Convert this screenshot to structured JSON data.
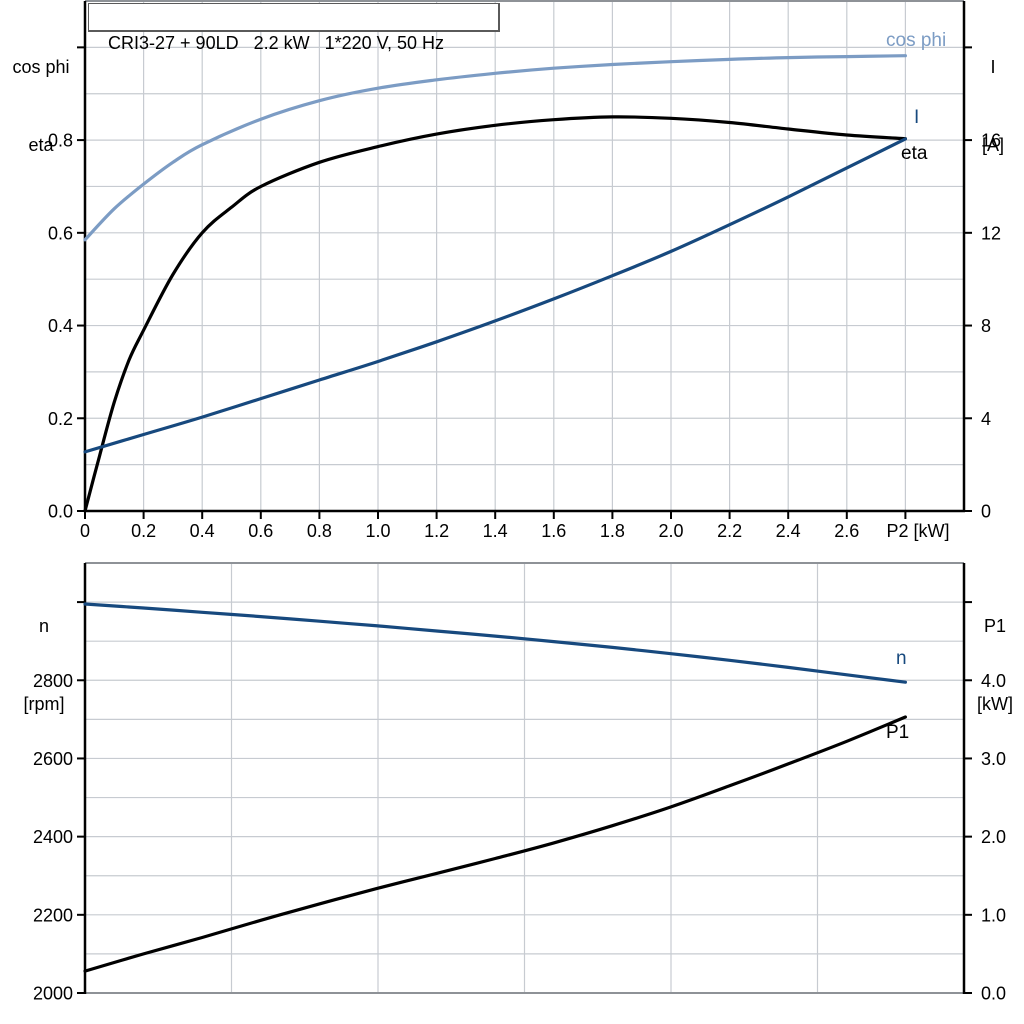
{
  "title": "CRI3-27 + 90LD   2.2 kW   1*220 V, 50 Hz",
  "colors": {
    "background": "#FFFFFF",
    "grid": "#C7CBD1",
    "axis": "#000000",
    "frame": "#8E9297",
    "title_border": "#5A5A5A",
    "cos_phi_blue": "#7C9CC4",
    "dark_blue": "#17497E",
    "black": "#000000"
  },
  "chart_data": [
    {
      "type": "line",
      "id": "top-chart",
      "title": "CRI3-27 + 90LD   2.2 kW   1*220 V, 50 Hz",
      "xlabel": "P2 [kW]",
      "x_range": [
        0,
        3.0
      ],
      "x_grid": [
        0.2,
        0.4,
        0.6,
        0.8,
        1.0,
        1.2,
        1.4,
        1.6,
        1.8,
        2.0,
        2.2,
        2.4,
        2.6,
        2.8
      ],
      "x_ticks": {
        "values": [
          0,
          0.2,
          0.4,
          0.6,
          0.8,
          1.0,
          1.2,
          1.4,
          1.6,
          1.8,
          2.0,
          2.2,
          2.4,
          2.6,
          2.8
        ],
        "labels": [
          "0",
          "0.2",
          "0.4",
          "0.6",
          "0.8",
          "1.0",
          "1.2",
          "1.4",
          "1.6",
          "1.8",
          "2.0",
          "2.2",
          "2.4",
          "2.6",
          ""
        ]
      },
      "left_axis": {
        "title_lines": [
          "cos phi",
          "eta"
        ],
        "range": [
          0,
          1.1
        ],
        "grid": [
          0.1,
          0.2,
          0.3,
          0.4,
          0.5,
          0.6,
          0.7,
          0.8,
          0.9,
          1.0,
          1.1
        ],
        "ticks": {
          "values": [
            0,
            0.2,
            0.4,
            0.6,
            0.8,
            1.0
          ],
          "labels": [
            "0.0",
            "0.2",
            "0.4",
            "0.6",
            "0.8",
            ""
          ]
        }
      },
      "right_axis": {
        "title_lines": [
          "I",
          "[A]"
        ],
        "range": [
          0,
          22
        ],
        "ticks": {
          "values": [
            0,
            4,
            8,
            12,
            16,
            20
          ],
          "labels": [
            "0",
            "4",
            "8",
            "12",
            "16",
            ""
          ]
        }
      },
      "series": [
        {
          "name": "cos phi",
          "axis": "left",
          "color": "#7C9CC4",
          "x": [
            0,
            0.1,
            0.2,
            0.3,
            0.4,
            0.6,
            0.8,
            1.0,
            1.2,
            1.4,
            1.6,
            1.8,
            2.0,
            2.2,
            2.4,
            2.6,
            2.8
          ],
          "y": [
            0.585,
            0.652,
            0.705,
            0.752,
            0.79,
            0.845,
            0.885,
            0.912,
            0.93,
            0.944,
            0.955,
            0.963,
            0.969,
            0.974,
            0.978,
            0.98,
            0.982
          ]
        },
        {
          "name": "eta",
          "axis": "left",
          "color": "#000000",
          "x": [
            0,
            0.05,
            0.1,
            0.15,
            0.2,
            0.3,
            0.4,
            0.5,
            0.6,
            0.8,
            1.0,
            1.2,
            1.4,
            1.6,
            1.8,
            2.0,
            2.2,
            2.4,
            2.6,
            2.8
          ],
          "y": [
            0,
            0.12,
            0.235,
            0.325,
            0.39,
            0.51,
            0.6,
            0.655,
            0.7,
            0.752,
            0.786,
            0.813,
            0.832,
            0.844,
            0.85,
            0.847,
            0.838,
            0.824,
            0.811,
            0.803
          ]
        },
        {
          "name": "I",
          "axis": "right",
          "color": "#17497E",
          "x": [
            0,
            0.2,
            0.4,
            0.6,
            0.8,
            1.0,
            1.2,
            1.4,
            1.6,
            1.8,
            2.0,
            2.2,
            2.4,
            2.6,
            2.8
          ],
          "y": [
            2.55,
            3.3,
            4.05,
            4.85,
            5.65,
            6.45,
            7.3,
            8.2,
            9.15,
            10.15,
            11.2,
            12.35,
            13.55,
            14.8,
            16.05
          ]
        }
      ]
    },
    {
      "type": "line",
      "id": "bottom-chart",
      "xlabel": "",
      "x_range": [
        0,
        3.0
      ],
      "x_grid": [
        0.5,
        1.0,
        1.5,
        2.0,
        2.5
      ],
      "x_ticks": {
        "values": [],
        "labels": []
      },
      "left_axis": {
        "title_lines": [
          "n",
          "[rpm]"
        ],
        "range": [
          2000,
          3100
        ],
        "grid": [
          2100,
          2200,
          2300,
          2400,
          2500,
          2600,
          2700,
          2800,
          2900,
          3000
        ],
        "ticks": {
          "values": [
            2000,
            2200,
            2400,
            2600,
            2800,
            3000
          ],
          "labels": [
            "2000",
            "2200",
            "2400",
            "2600",
            "2800",
            ""
          ]
        }
      },
      "right_axis": {
        "title_lines": [
          "P1",
          "[kW]"
        ],
        "range": [
          0,
          5.5
        ],
        "ticks": {
          "values": [
            0,
            1,
            2,
            3,
            4,
            5
          ],
          "labels": [
            "0.0",
            "1.0",
            "2.0",
            "3.0",
            "4.0",
            ""
          ]
        }
      },
      "series": [
        {
          "name": "n",
          "axis": "left",
          "color": "#17497E",
          "x": [
            0,
            0.2,
            0.4,
            0.6,
            0.8,
            1.0,
            1.2,
            1.4,
            1.6,
            1.8,
            2.0,
            2.2,
            2.4,
            2.6,
            2.8
          ],
          "y": [
            2995,
            2985,
            2974,
            2963,
            2951,
            2939,
            2926,
            2913,
            2899,
            2884,
            2868,
            2851,
            2833,
            2814,
            2795
          ]
        },
        {
          "name": "P1",
          "axis": "right",
          "color": "#000000",
          "x": [
            0,
            0.2,
            0.4,
            0.6,
            0.8,
            1.0,
            1.2,
            1.4,
            1.6,
            1.8,
            2.0,
            2.2,
            2.4,
            2.6,
            2.8
          ],
          "y": [
            0.28,
            0.5,
            0.71,
            0.93,
            1.14,
            1.34,
            1.53,
            1.72,
            1.92,
            2.14,
            2.38,
            2.65,
            2.93,
            3.22,
            3.53
          ]
        }
      ]
    }
  ]
}
